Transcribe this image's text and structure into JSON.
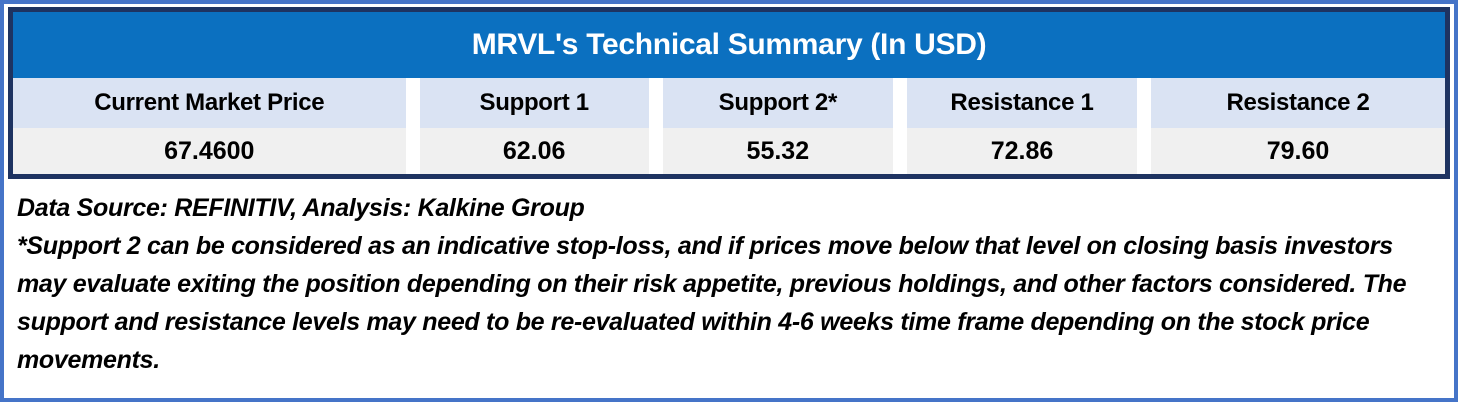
{
  "table": {
    "title": "MRVL's Technical Summary (In USD)",
    "columns": [
      {
        "label": "Current Market Price",
        "value": "67.4600"
      },
      {
        "label": "Support 1",
        "value": "62.06"
      },
      {
        "label": "Support 2*",
        "value": "55.32"
      },
      {
        "label": "Resistance 1",
        "value": "72.86"
      },
      {
        "label": "Resistance 2",
        "value": "79.60"
      }
    ]
  },
  "notes": {
    "data_source": "Data Source: REFINITIV, Analysis: Kalkine Group",
    "disclaimer": "*Support 2 can be considered as an indicative stop-loss, and if prices move below that level on closing basis investors may evaluate exiting the position depending on their risk appetite, previous holdings, and other factors considered. The support and resistance levels may need to be re-evaluated within 4-6 weeks time frame depending on the stock price movements."
  },
  "colors": {
    "outerborder": "#4574c8",
    "innerborder": "#1e3361",
    "titlebar": "#0b70c0",
    "titletext": "#ffffff",
    "headerbg": "#dae3f3",
    "valuebg": "#f0f0f0",
    "textcolor": "#000000"
  },
  "chart_data": {
    "type": "table",
    "title": "MRVL's Technical Summary (In USD)",
    "columns": [
      "Current Market Price",
      "Support 1",
      "Support 2*",
      "Resistance 1",
      "Resistance 2"
    ],
    "rows": [
      [
        67.46,
        62.06,
        55.32,
        72.86,
        79.6
      ]
    ]
  }
}
